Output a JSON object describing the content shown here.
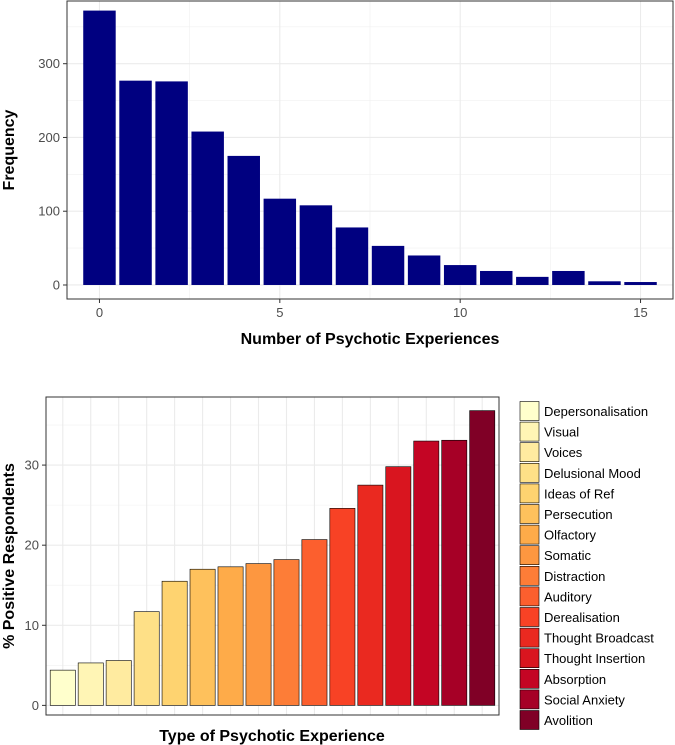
{
  "chart_data": [
    {
      "type": "bar",
      "xlabel": "Number of Psychotic Experiences",
      "ylabel": "Frequency",
      "x": [
        0,
        1,
        2,
        3,
        4,
        5,
        6,
        7,
        8,
        9,
        10,
        11,
        12,
        13,
        14,
        15
      ],
      "values": [
        372,
        277,
        276,
        208,
        175,
        117,
        108,
        78,
        53,
        40,
        27,
        19,
        11,
        19,
        5,
        4
      ],
      "xlim": [
        -0.9,
        15.9
      ],
      "ylim": [
        0,
        385
      ],
      "xticks": [
        0,
        5,
        10,
        15
      ],
      "yticks": [
        0,
        100,
        200,
        300
      ],
      "bar_color": "#000080",
      "grid": true
    },
    {
      "type": "bar",
      "xlabel": "Type of Psychotic Experience",
      "ylabel": "% Positive Respondents",
      "categories": [
        "Depersonalisation",
        "Visual",
        "Voices",
        "Delusional Mood",
        "Ideas of Ref",
        "Persecution",
        "Olfactory",
        "Somatic",
        "Distraction",
        "Auditory",
        "Derealisation",
        "Thought Broadcast",
        "Thought Insertion",
        "Absorption",
        "Social Anxiety",
        "Avolition"
      ],
      "values": [
        4.4,
        5.3,
        5.6,
        11.7,
        15.5,
        17.0,
        17.3,
        17.7,
        18.2,
        20.7,
        24.6,
        27.5,
        29.8,
        33.0,
        33.1,
        36.8
      ],
      "colors": [
        "#FFFFCC",
        "#FFF5B5",
        "#FFEBA0",
        "#FEE087",
        "#FED370",
        "#FEC15C",
        "#FEAB49",
        "#FD9740",
        "#FD7D37",
        "#FC5F2E",
        "#F84225",
        "#EA2920",
        "#D9151F",
        "#C40524",
        "#A60026",
        "#800026"
      ],
      "ylim": [
        -1.2,
        38.5
      ],
      "yticks": [
        0,
        10,
        20,
        30
      ],
      "legend_position": "right",
      "grid": true
    }
  ]
}
